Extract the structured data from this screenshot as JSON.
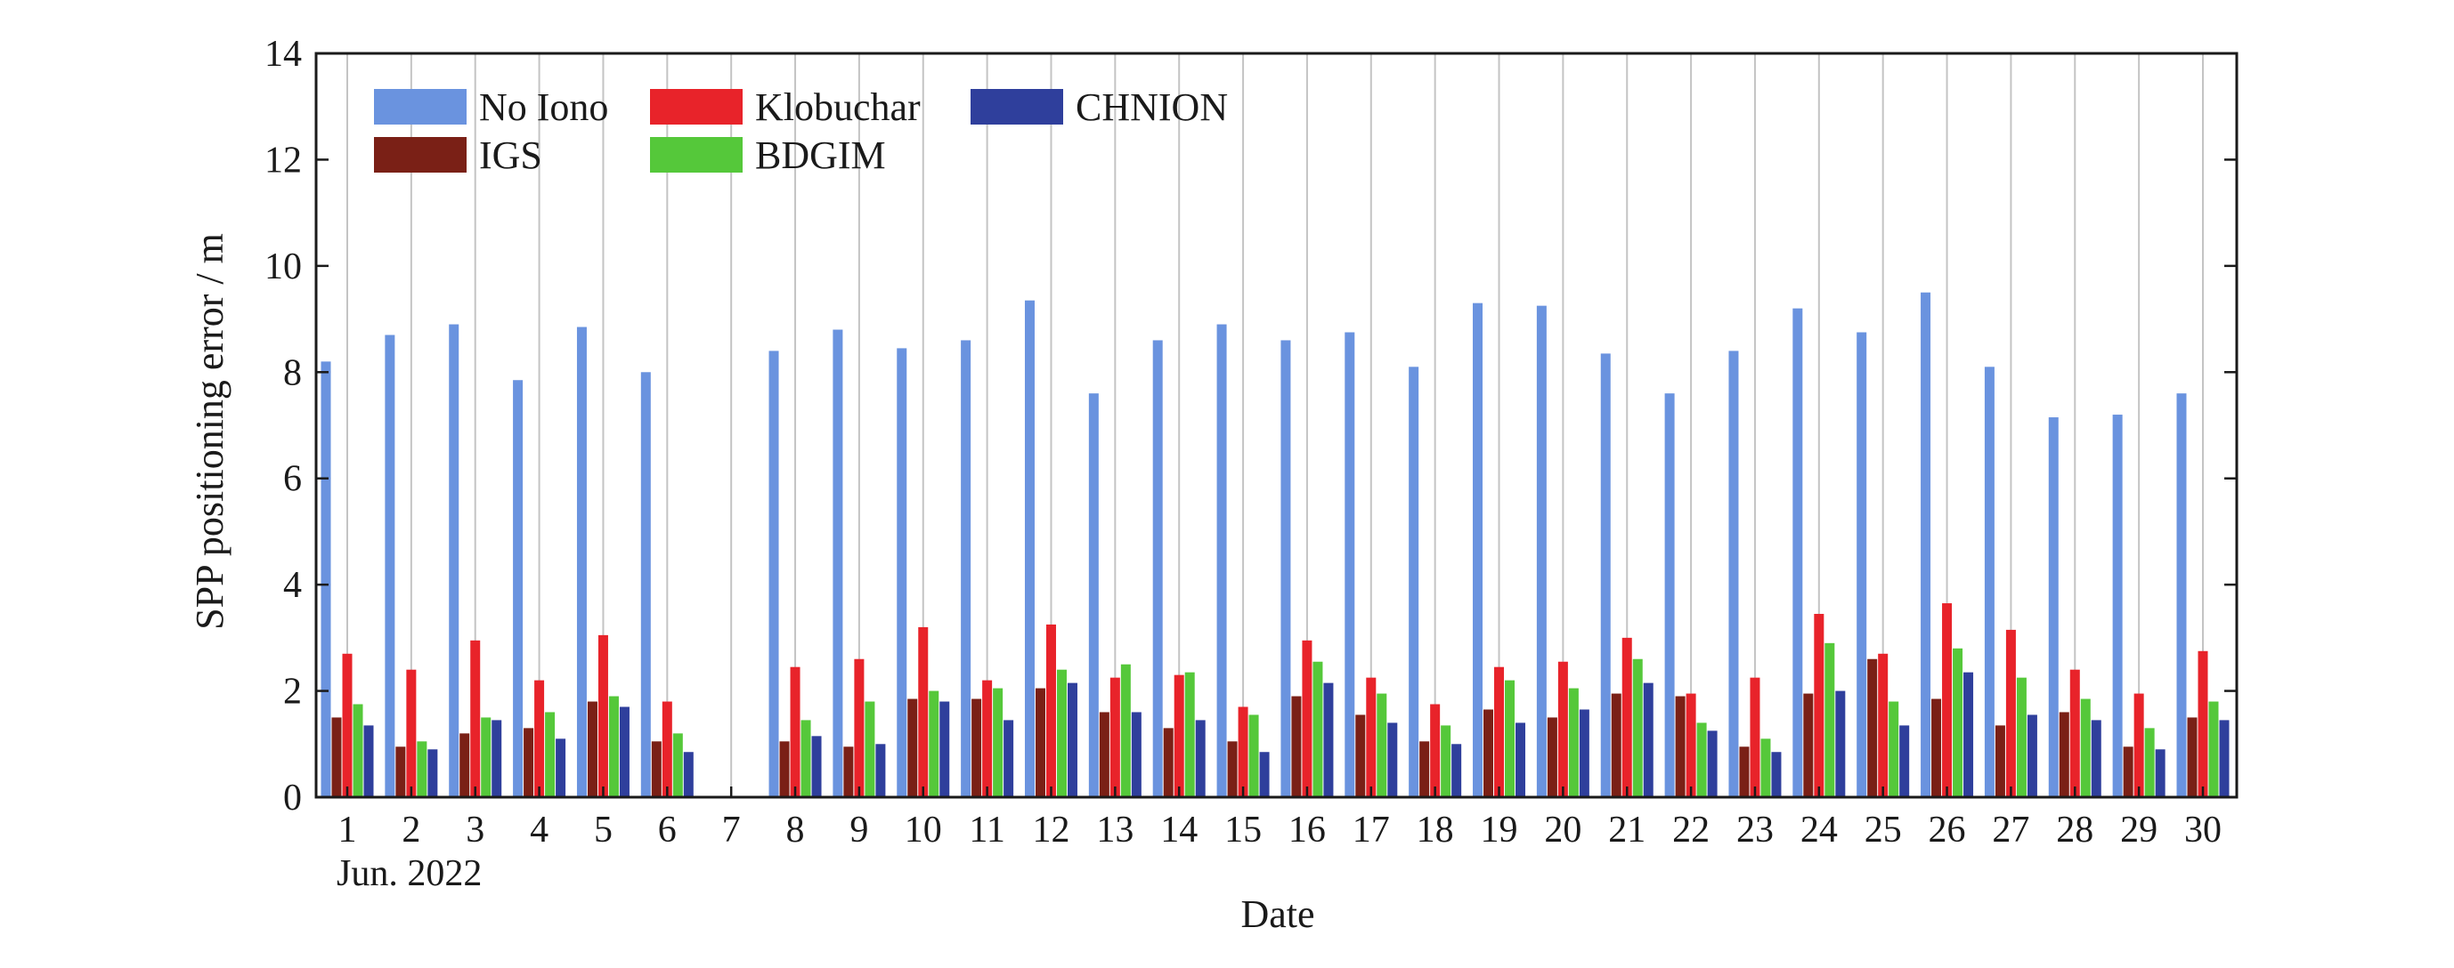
{
  "chart_data": {
    "type": "bar",
    "xlabel": "Date",
    "ylabel": "SPP positioning error / m",
    "x_sublabel": "Jun. 2022",
    "ylim": [
      0,
      14
    ],
    "yticks": [
      "0",
      "2",
      "4",
      "6",
      "8",
      "10",
      "12",
      "14"
    ],
    "grid": true,
    "legend_position": "top-left",
    "categories": [
      "1",
      "2",
      "3",
      "4",
      "5",
      "6",
      "7",
      "8",
      "9",
      "10",
      "11",
      "12",
      "13",
      "14",
      "15",
      "16",
      "17",
      "18",
      "19",
      "20",
      "21",
      "22",
      "23",
      "24",
      "25",
      "26",
      "27",
      "28",
      "29",
      "30"
    ],
    "series": [
      {
        "name": "No Iono",
        "color": "#6a93df",
        "values": [
          8.2,
          8.7,
          8.9,
          7.85,
          8.85,
          8.0,
          null,
          8.4,
          8.8,
          8.45,
          8.6,
          9.35,
          7.6,
          8.6,
          8.9,
          8.6,
          8.75,
          8.1,
          9.3,
          9.25,
          8.35,
          7.6,
          8.4,
          9.2,
          8.75,
          9.5,
          8.1,
          7.15,
          7.2,
          7.6
        ]
      },
      {
        "name": "IGS",
        "color": "#7a2016",
        "values": [
          1.5,
          0.95,
          1.2,
          1.3,
          1.8,
          1.05,
          null,
          1.05,
          0.95,
          1.85,
          1.85,
          2.05,
          1.6,
          1.3,
          1.05,
          1.9,
          1.55,
          1.05,
          1.65,
          1.5,
          1.95,
          1.9,
          0.95,
          1.95,
          2.6,
          1.85,
          1.35,
          1.6,
          0.95,
          1.5
        ]
      },
      {
        "name": "Klobuchar",
        "color": "#e8232a",
        "values": [
          2.7,
          2.4,
          2.95,
          2.2,
          3.05,
          1.8,
          null,
          2.45,
          2.6,
          3.2,
          2.2,
          3.25,
          2.25,
          2.3,
          1.7,
          2.95,
          2.25,
          1.75,
          2.45,
          2.55,
          3.0,
          1.95,
          2.25,
          3.45,
          2.7,
          3.65,
          3.15,
          2.4,
          1.95,
          2.75
        ]
      },
      {
        "name": "BDGIM",
        "color": "#55c83a",
        "values": [
          1.75,
          1.05,
          1.5,
          1.6,
          1.9,
          1.2,
          null,
          1.45,
          1.8,
          2.0,
          2.05,
          2.4,
          2.5,
          2.35,
          1.55,
          2.55,
          1.95,
          1.35,
          2.2,
          2.05,
          2.6,
          1.4,
          1.1,
          2.9,
          1.8,
          2.8,
          2.25,
          1.85,
          1.3,
          1.8
        ]
      },
      {
        "name": "CHNION",
        "color": "#2f3f9c",
        "values": [
          1.35,
          0.9,
          1.45,
          1.1,
          1.7,
          0.85,
          null,
          1.15,
          1.0,
          1.8,
          1.45,
          2.15,
          1.6,
          1.45,
          0.85,
          2.15,
          1.4,
          1.0,
          1.4,
          1.65,
          2.15,
          1.25,
          0.85,
          2.0,
          1.35,
          2.35,
          1.55,
          1.45,
          0.9,
          1.45
        ]
      }
    ]
  }
}
